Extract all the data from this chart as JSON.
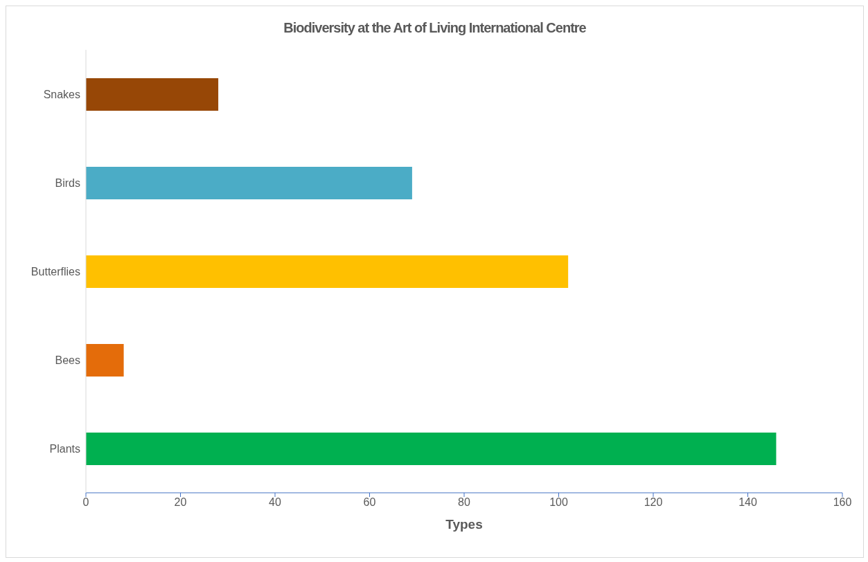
{
  "chart_data": {
    "type": "bar",
    "orientation": "horizontal",
    "title": "Biodiversity at the Art of Living International Centre",
    "xlabel": "Types",
    "categories": [
      "Snakes",
      "Birds",
      "Butterflies",
      "Bees",
      "Plants"
    ],
    "values": [
      28,
      69,
      102,
      8,
      146
    ],
    "colors": [
      "#974706",
      "#4bacc6",
      "#ffc000",
      "#e46c0a",
      "#00b050"
    ],
    "xlim": [
      0,
      160
    ],
    "xticks": [
      0,
      20,
      40,
      60,
      80,
      100,
      120,
      140,
      160
    ],
    "grid": false,
    "legend": false
  }
}
